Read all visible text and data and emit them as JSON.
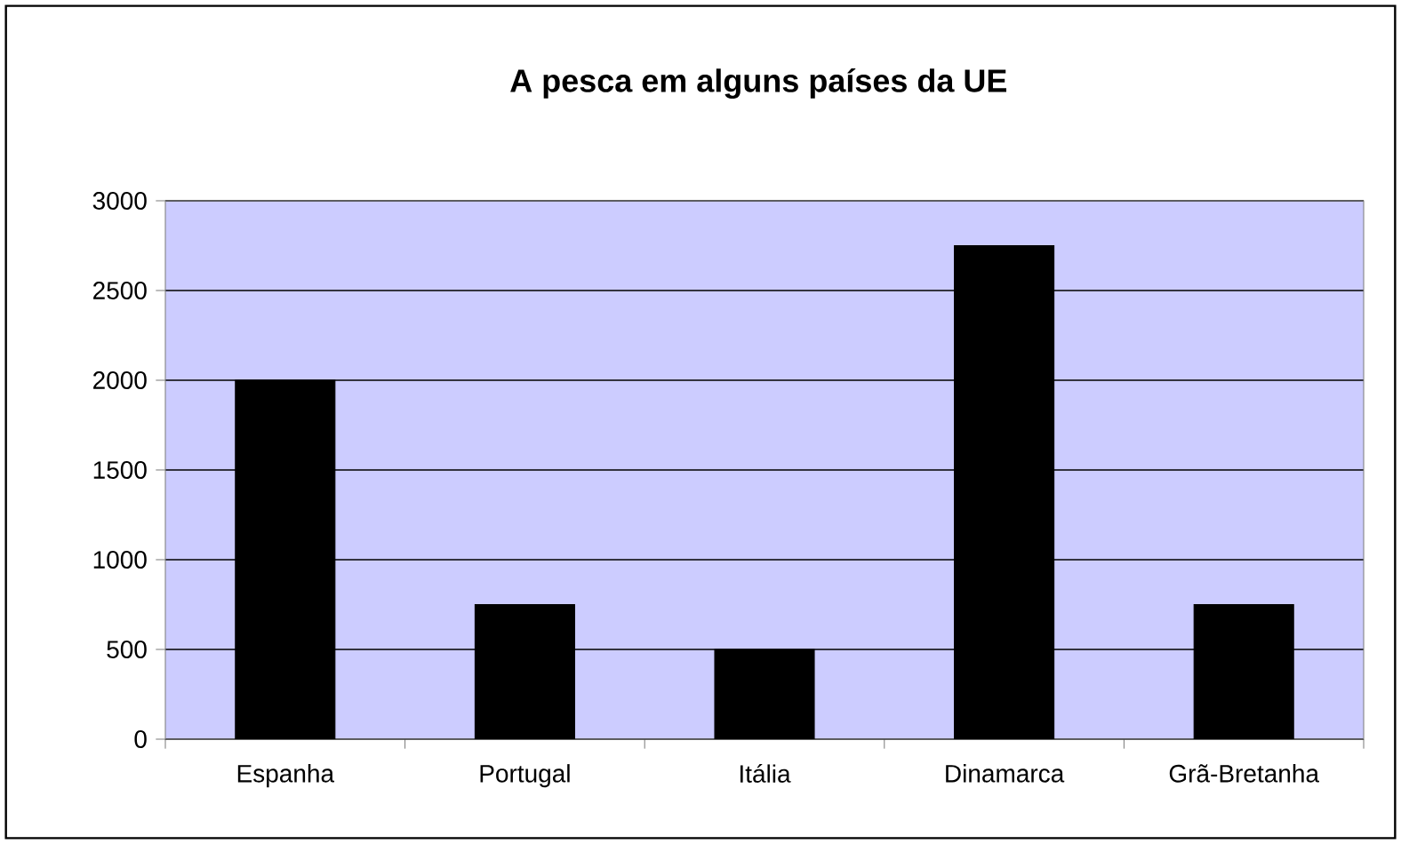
{
  "chart_data": {
    "type": "bar",
    "title": "A pesca em alguns países da UE",
    "categories": [
      "Espanha",
      "Portugal",
      "Itália",
      "Dinamarca",
      "Grã-Bretanha"
    ],
    "values": [
      2000,
      750,
      500,
      2750,
      750
    ],
    "color": "#000000",
    "ylim": [
      0,
      3000
    ],
    "yticks": [
      0,
      500,
      1000,
      1500,
      2000,
      2500,
      3000
    ],
    "grid": "y"
  }
}
